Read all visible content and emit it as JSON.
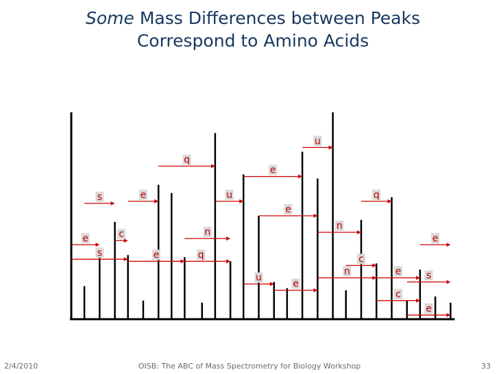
{
  "slide": {
    "title_italic": "Some",
    "title_rest": "Mass Differences between Peaks",
    "title_line2": "Correspond to Amino Acids"
  },
  "footer": {
    "date": "2/4/2010",
    "center": "OISB: The ABC of Mass Spectrometry for Biology Workshop",
    "page": "33"
  },
  "colors": {
    "peak": "#000000",
    "arrow": "#cc0000",
    "label_bg": "#d9d9d9",
    "label_text": "#c00000",
    "title": "#17375e"
  },
  "chart_data": {
    "type": "stick-spectrum",
    "title": "Some Mass Differences between Peaks Correspond to Amino Acids",
    "xlabel": "",
    "ylabel": "",
    "peaks": [
      {
        "x": 0,
        "y": 100
      },
      {
        "x": 6,
        "y": 16
      },
      {
        "x": 13,
        "y": 31
      },
      {
        "x": 20,
        "y": 47
      },
      {
        "x": 26,
        "y": 31
      },
      {
        "x": 33,
        "y": 9
      },
      {
        "x": 40,
        "y": 65
      },
      {
        "x": 46,
        "y": 61
      },
      {
        "x": 52,
        "y": 30
      },
      {
        "x": 60,
        "y": 8
      },
      {
        "x": 66,
        "y": 90
      },
      {
        "x": 73,
        "y": 28
      },
      {
        "x": 79,
        "y": 70
      },
      {
        "x": 86,
        "y": 50
      },
      {
        "x": 93,
        "y": 18
      },
      {
        "x": 99,
        "y": 15
      },
      {
        "x": 106,
        "y": 81
      },
      {
        "x": 113,
        "y": 68
      },
      {
        "x": 120,
        "y": 100
      },
      {
        "x": 126,
        "y": 14
      },
      {
        "x": 133,
        "y": 48
      },
      {
        "x": 140,
        "y": 27
      },
      {
        "x": 147,
        "y": 59
      },
      {
        "x": 154,
        "y": 9
      },
      {
        "x": 160,
        "y": 24
      },
      {
        "x": 167,
        "y": 11
      },
      {
        "x": 174,
        "y": 8
      }
    ],
    "differences": [
      {
        "label": "s",
        "from": 6,
        "to": 20,
        "level": 56
      },
      {
        "label": "e",
        "from": 26,
        "to": 40,
        "level": 57
      },
      {
        "label": "q",
        "from": 40,
        "to": 66,
        "level": 74
      },
      {
        "label": "u",
        "from": 66,
        "to": 79,
        "level": 57
      },
      {
        "label": "e",
        "from": 79,
        "to": 106,
        "level": 69
      },
      {
        "label": "u",
        "from": 106,
        "to": 120,
        "level": 83
      },
      {
        "label": "e",
        "from": 86,
        "to": 113,
        "level": 50
      },
      {
        "label": "n",
        "from": 113,
        "to": 133,
        "level": 42
      },
      {
        "label": "q",
        "from": 133,
        "to": 147,
        "level": 57
      },
      {
        "label": "e",
        "from": 0,
        "to": 13,
        "level": 36
      },
      {
        "label": "c",
        "from": 20,
        "to": 26,
        "level": 38
      },
      {
        "label": "n",
        "from": 52,
        "to": 73,
        "level": 39
      },
      {
        "label": "e",
        "from": 160,
        "to": 174,
        "level": 36
      },
      {
        "label": "s",
        "from": 0,
        "to": 26,
        "level": 29
      },
      {
        "label": "e",
        "from": 26,
        "to": 52,
        "level": 28
      },
      {
        "label": "q",
        "from": 46,
        "to": 73,
        "level": 28
      },
      {
        "label": "n",
        "from": 113,
        "to": 140,
        "level": 20
      },
      {
        "label": "c",
        "from": 126,
        "to": 140,
        "level": 26
      },
      {
        "label": "e",
        "from": 140,
        "to": 160,
        "level": 20
      },
      {
        "label": "s",
        "from": 154,
        "to": 174,
        "level": 18
      },
      {
        "label": "u",
        "from": 79,
        "to": 93,
        "level": 17
      },
      {
        "label": "e",
        "from": 93,
        "to": 113,
        "level": 14
      },
      {
        "label": "c",
        "from": 140,
        "to": 160,
        "level": 9
      },
      {
        "label": "e",
        "from": 154,
        "to": 174,
        "level": 2
      }
    ]
  }
}
